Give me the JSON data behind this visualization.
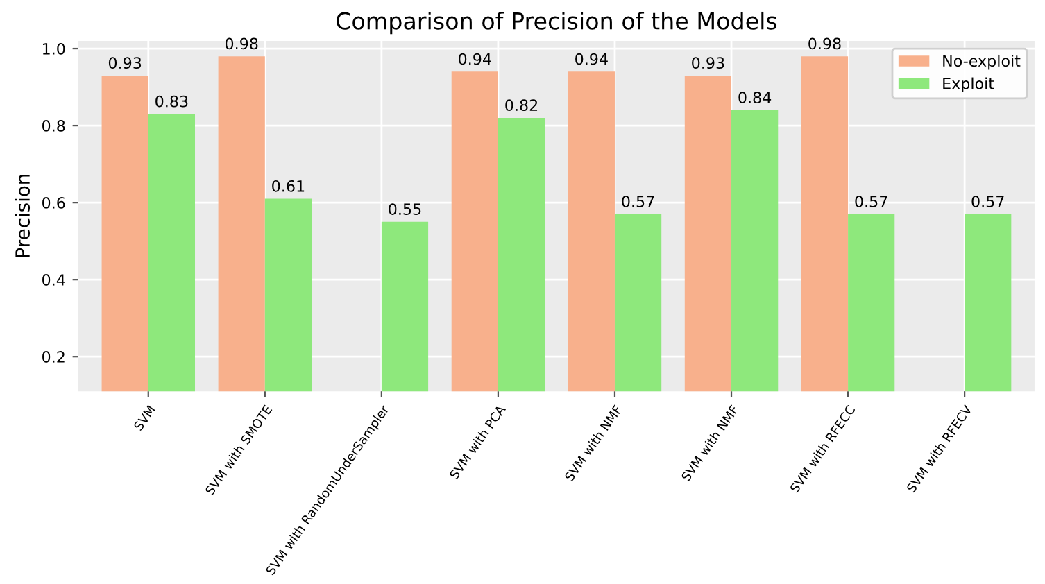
{
  "chart_data": {
    "type": "bar",
    "title": "Comparison of Precision of the Models",
    "ylabel": "Precision",
    "categories": [
      "SVM",
      "SVM with SMOTE",
      "SVM with RandomUnderSampler",
      "SVM with PCA",
      "SVM with NMF",
      "SVM with NMF",
      "SVM with RFECC",
      "SVM with RFECV"
    ],
    "series": [
      {
        "name": "No-exploit",
        "color": "#f8b08c",
        "values": [
          0.93,
          0.98,
          null,
          0.94,
          0.94,
          0.93,
          0.98,
          null
        ]
      },
      {
        "name": "Exploit",
        "color": "#8ee87c",
        "values": [
          0.83,
          0.61,
          0.55,
          0.82,
          0.57,
          0.84,
          0.57,
          0.57
        ]
      }
    ],
    "ylim": [
      0.11,
      1.02
    ],
    "yticks": [
      0.2,
      0.4,
      0.6,
      0.8,
      {
        "value": 1.0,
        "label": "1.0"
      }
    ],
    "grid": true,
    "legend": "top right",
    "data_labels": true
  }
}
